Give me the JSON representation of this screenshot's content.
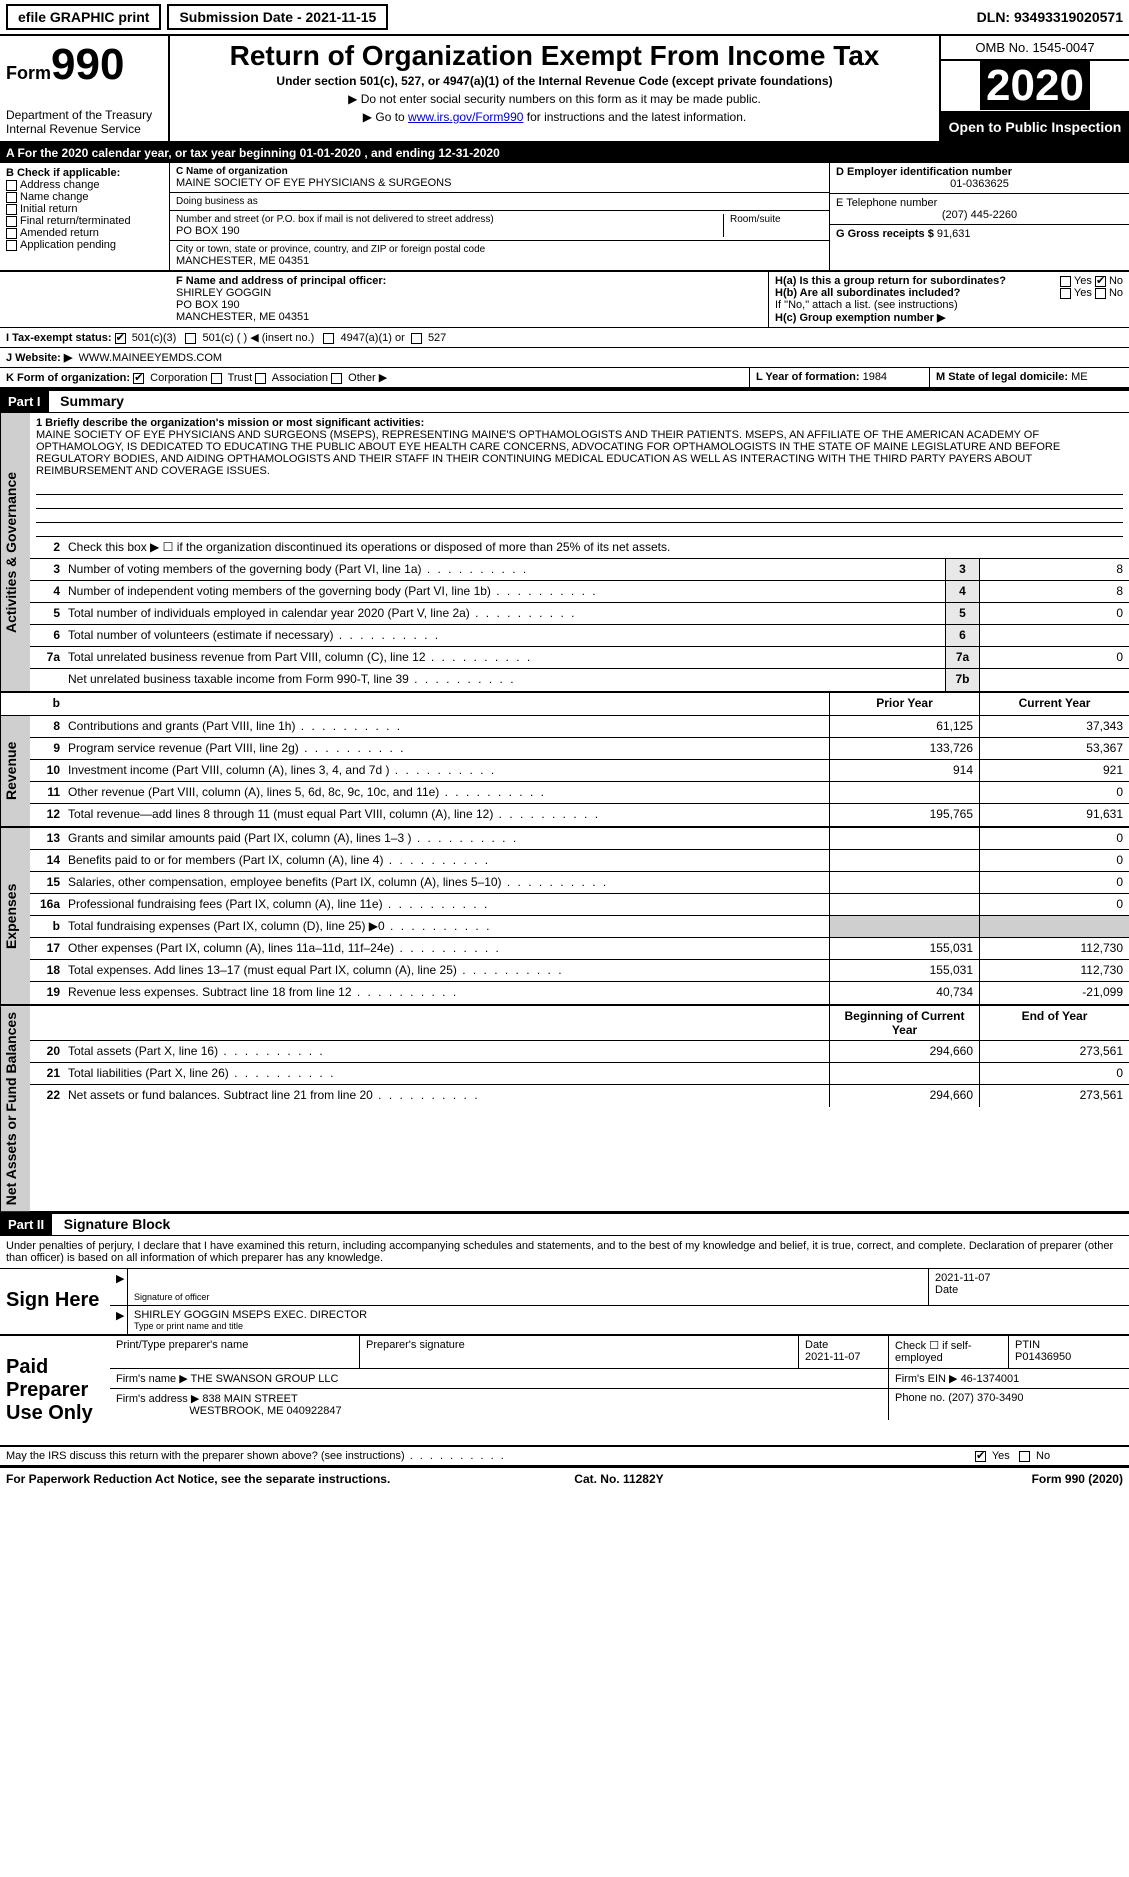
{
  "topbar": {
    "efile": "efile GRAPHIC print",
    "submission_label": "Submission Date - ",
    "submission_date": "2021-11-15",
    "dln_label": "DLN: ",
    "dln": "93493319020571"
  },
  "header": {
    "form_prefix": "Form",
    "form_num": "990",
    "dept": "Department of the Treasury\nInternal Revenue Service",
    "title": "Return of Organization Exempt From Income Tax",
    "subtitle": "Under section 501(c), 527, or 4947(a)(1) of the Internal Revenue Code (except private foundations)",
    "note1": "▶ Do not enter social security numbers on this form as it may be made public.",
    "note2_pre": "▶ Go to ",
    "note2_link": "www.irs.gov/Form990",
    "note2_post": " for instructions and the latest information.",
    "omb": "OMB No. 1545-0047",
    "year": "2020",
    "open_public": "Open to Public Inspection"
  },
  "row_a": "A For the 2020 calendar year, or tax year beginning 01-01-2020   , and ending 12-31-2020",
  "box_b": {
    "heading": "B Check if applicable:",
    "items": [
      "Address change",
      "Name change",
      "Initial return",
      "Final return/terminated",
      "Amended return",
      "Application pending"
    ]
  },
  "box_c": {
    "name_lbl": "C Name of organization",
    "name": "MAINE SOCIETY OF EYE PHYSICIANS & SURGEONS",
    "dba_lbl": "Doing business as",
    "dba": "",
    "street_lbl": "Number and street (or P.O. box if mail is not delivered to street address)",
    "street": "PO BOX 190",
    "room_lbl": "Room/suite",
    "city_lbl": "City or town, state or province, country, and ZIP or foreign postal code",
    "city": "MANCHESTER, ME  04351"
  },
  "box_d": {
    "lbl": "D Employer identification number",
    "val": "01-0363625"
  },
  "box_e": {
    "lbl": "E Telephone number",
    "val": "(207) 445-2260"
  },
  "box_g": {
    "lbl": "G Gross receipts $",
    "val": "91,631"
  },
  "box_f": {
    "lbl": "F  Name and address of principal officer:",
    "name": "SHIRLEY GOGGIN",
    "addr1": "PO BOX 190",
    "addr2": "MANCHESTER, ME  04351"
  },
  "box_h": {
    "ha": "H(a)  Is this a group return for subordinates?",
    "ha_yes": "Yes",
    "ha_no": "No",
    "hb": "H(b)  Are all subordinates included?",
    "hb_note": "If \"No,\" attach a list. (see instructions)",
    "hc": "H(c)  Group exemption number ▶"
  },
  "box_i": {
    "lbl": "I   Tax-exempt status:",
    "o1": "501(c)(3)",
    "o2": "501(c) (  ) ◀ (insert no.)",
    "o3": "4947(a)(1) or",
    "o4": "527"
  },
  "box_j": {
    "lbl": "J   Website: ▶",
    "val": "WWW.MAINEEYEMDS.COM"
  },
  "box_k": {
    "lbl": "K Form of organization:",
    "o1": "Corporation",
    "o2": "Trust",
    "o3": "Association",
    "o4": "Other ▶"
  },
  "box_l": {
    "lbl": "L Year of formation:",
    "val": "1984"
  },
  "box_m": {
    "lbl": "M State of legal domicile:",
    "val": "ME"
  },
  "part1": {
    "tag": "Part I",
    "title": "Summary"
  },
  "mission": {
    "lbl": "1   Briefly describe the organization's mission or most significant activities:",
    "text": "MAINE SOCIETY OF EYE PHYSICIANS AND SURGEONS (MSEPS), REPRESENTING MAINE'S OPTHAMOLOGISTS AND THEIR PATIENTS. MSEPS, AN AFFILIATE OF THE AMERICAN ACADEMY OF OPTHAMOLOGY, IS DEDICATED TO EDUCATING THE PUBLIC ABOUT EYE HEALTH CARE CONCERNS, ADVOCATING FOR OPTHAMOLOGISTS IN THE STATE OF MAINE LEGISLATURE AND BEFORE REGULATORY BODIES, AND AIDING OPTHAMOLOGISTS AND THEIR STAFF IN THEIR CONTINUING MEDICAL EDUCATION AS WELL AS INTERACTING WITH THE THIRD PARTY PAYERS ABOUT REIMBURSEMENT AND COVERAGE ISSUES."
  },
  "governance": {
    "line2": "Check this box ▶ ☐  if the organization discontinued its operations or disposed of more than 25% of its net assets.",
    "rows": [
      {
        "n": "3",
        "d": "Number of voting members of the governing body (Part VI, line 1a)",
        "b": "3",
        "v": "8"
      },
      {
        "n": "4",
        "d": "Number of independent voting members of the governing body (Part VI, line 1b)",
        "b": "4",
        "v": "8"
      },
      {
        "n": "5",
        "d": "Total number of individuals employed in calendar year 2020 (Part V, line 2a)",
        "b": "5",
        "v": "0"
      },
      {
        "n": "6",
        "d": "Total number of volunteers (estimate if necessary)",
        "b": "6",
        "v": ""
      },
      {
        "n": "7a",
        "d": "Total unrelated business revenue from Part VIII, column (C), line 12",
        "b": "7a",
        "v": "0"
      },
      {
        "n": "",
        "d": "Net unrelated business taxable income from Form 990-T, line 39",
        "b": "7b",
        "v": ""
      }
    ]
  },
  "col_headers": {
    "b": "b",
    "prior": "Prior Year",
    "curr": "Current Year"
  },
  "revenue": {
    "label": "Revenue",
    "rows": [
      {
        "n": "8",
        "d": "Contributions and grants (Part VIII, line 1h)",
        "p": "61,125",
        "c": "37,343"
      },
      {
        "n": "9",
        "d": "Program service revenue (Part VIII, line 2g)",
        "p": "133,726",
        "c": "53,367"
      },
      {
        "n": "10",
        "d": "Investment income (Part VIII, column (A), lines 3, 4, and 7d )",
        "p": "914",
        "c": "921"
      },
      {
        "n": "11",
        "d": "Other revenue (Part VIII, column (A), lines 5, 6d, 8c, 9c, 10c, and 11e)",
        "p": "",
        "c": "0"
      },
      {
        "n": "12",
        "d": "Total revenue—add lines 8 through 11 (must equal Part VIII, column (A), line 12)",
        "p": "195,765",
        "c": "91,631"
      }
    ]
  },
  "expenses": {
    "label": "Expenses",
    "rows": [
      {
        "n": "13",
        "d": "Grants and similar amounts paid (Part IX, column (A), lines 1–3 )",
        "p": "",
        "c": "0"
      },
      {
        "n": "14",
        "d": "Benefits paid to or for members (Part IX, column (A), line 4)",
        "p": "",
        "c": "0"
      },
      {
        "n": "15",
        "d": "Salaries, other compensation, employee benefits (Part IX, column (A), lines 5–10)",
        "p": "",
        "c": "0"
      },
      {
        "n": "16a",
        "d": "Professional fundraising fees (Part IX, column (A), line 11e)",
        "p": "",
        "c": "0"
      },
      {
        "n": "b",
        "d": "Total fundraising expenses (Part IX, column (D), line 25) ▶0",
        "p": "grey",
        "c": "grey"
      },
      {
        "n": "17",
        "d": "Other expenses (Part IX, column (A), lines 11a–11d, 11f–24e)",
        "p": "155,031",
        "c": "112,730"
      },
      {
        "n": "18",
        "d": "Total expenses. Add lines 13–17 (must equal Part IX, column (A), line 25)",
        "p": "155,031",
        "c": "112,730"
      },
      {
        "n": "19",
        "d": "Revenue less expenses. Subtract line 18 from line 12",
        "p": "40,734",
        "c": "-21,099"
      }
    ]
  },
  "netassets": {
    "label": "Net Assets or Fund Balances",
    "header_prior": "Beginning of Current Year",
    "header_curr": "End of Year",
    "rows": [
      {
        "n": "20",
        "d": "Total assets (Part X, line 16)",
        "p": "294,660",
        "c": "273,561"
      },
      {
        "n": "21",
        "d": "Total liabilities (Part X, line 26)",
        "p": "",
        "c": "0"
      },
      {
        "n": "22",
        "d": "Net assets or fund balances. Subtract line 21 from line 20",
        "p": "294,660",
        "c": "273,561"
      }
    ]
  },
  "part2": {
    "tag": "Part II",
    "title": "Signature Block"
  },
  "sig": {
    "intro": "Under penalties of perjury, I declare that I have examined this return, including accompanying schedules and statements, and to the best of my knowledge and belief, it is true, correct, and complete. Declaration of preparer (other than officer) is based on all information of which preparer has any knowledge.",
    "sign_here": "Sign Here",
    "officer_sig_lbl": "Signature of officer",
    "officer_date": "2021-11-07",
    "date_lbl": "Date",
    "officer_name": "SHIRLEY GOGGIN  MSEPS EXEC. DIRECTOR",
    "officer_name_lbl": "Type or print name and title",
    "paid": "Paid Preparer Use Only",
    "prep_name_lbl": "Print/Type preparer's name",
    "prep_sig_lbl": "Preparer's signature",
    "prep_date_lbl": "Date",
    "prep_date": "2021-11-07",
    "self_emp": "Check ☐ if self-employed",
    "ptin_lbl": "PTIN",
    "ptin": "P01436950",
    "firm_name_lbl": "Firm's name    ▶",
    "firm_name": "THE SWANSON GROUP LLC",
    "firm_ein_lbl": "Firm's EIN ▶",
    "firm_ein": "46-1374001",
    "firm_addr_lbl": "Firm's address ▶",
    "firm_addr1": "838 MAIN STREET",
    "firm_addr2": "WESTBROOK, ME  040922847",
    "firm_phone_lbl": "Phone no.",
    "firm_phone": "(207) 370-3490",
    "discuss": "May the IRS discuss this return with the preparer shown above? (see instructions)",
    "yes": "Yes",
    "no": "No"
  },
  "footer": {
    "left": "For Paperwork Reduction Act Notice, see the separate instructions.",
    "mid": "Cat. No. 11282Y",
    "right": "Form 990 (2020)"
  },
  "side_labels": {
    "gov": "Activities & Governance"
  }
}
